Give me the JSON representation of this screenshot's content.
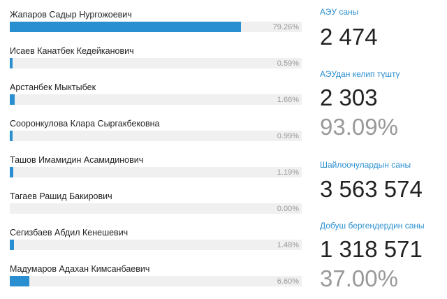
{
  "candidates": [
    {
      "name": "Жапаров Садыр Нургожоевич",
      "percent_label": "79.26%",
      "share": 79.26
    },
    {
      "name": "Исаев Канатбек Кедейканович",
      "percent_label": "0.59%",
      "share": 0.59
    },
    {
      "name": "Арстанбек Мыктыбек",
      "percent_label": "1.66%",
      "share": 1.66
    },
    {
      "name": "Сооронкулова Клара Сыргакбековна",
      "percent_label": "0.99%",
      "share": 0.99
    },
    {
      "name": "Ташов Имамидин Асамидинович",
      "percent_label": "1.19%",
      "share": 1.19
    },
    {
      "name": "Тагаев Рашид Бакирович",
      "percent_label": "0.00%",
      "share": 0.0
    },
    {
      "name": "Сегизбаев Абдил Кенешевич",
      "percent_label": "1.48%",
      "share": 1.48
    },
    {
      "name": "Мадумаров Адахан Кимсанбаевич",
      "percent_label": "6.60%",
      "share": 6.6
    }
  ],
  "stats": {
    "aeu_label": "АЭУ саны",
    "aeu_value": "2 474",
    "aeu_received_label": "АЭУдан келип түштү",
    "aeu_received_value": "2 303",
    "aeu_received_pct": "93.09%",
    "voters_label": "Шайлоочулардын саны",
    "voters_value": "3 563 574",
    "turnout_label": "Добуш бергендердин саны",
    "turnout_value": "1 318 571",
    "turnout_pct": "37.00%"
  },
  "colors": {
    "accent": "#2a8fd0",
    "muted": "#999999",
    "track": "#f0f0f0"
  }
}
